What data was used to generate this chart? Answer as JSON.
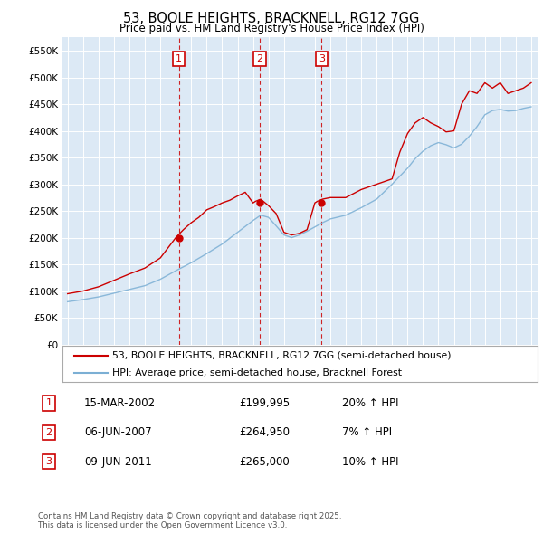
{
  "title": "53, BOOLE HEIGHTS, BRACKNELL, RG12 7GG",
  "subtitle": "Price paid vs. HM Land Registry's House Price Index (HPI)",
  "bg_color": "#ffffff",
  "plot_bg_color": "#dce9f5",
  "ylim": [
    0,
    575000
  ],
  "ytick_vals": [
    0,
    50000,
    100000,
    150000,
    200000,
    250000,
    300000,
    350000,
    400000,
    450000,
    500000,
    550000
  ],
  "ytick_labels": [
    "£0",
    "£50K",
    "£100K",
    "£150K",
    "£200K",
    "£250K",
    "£300K",
    "£350K",
    "£400K",
    "£450K",
    "£500K",
    "£550K"
  ],
  "sale_dates": [
    "2002-03-15",
    "2007-06-06",
    "2011-06-09"
  ],
  "sale_prices": [
    199995,
    264950,
    265000
  ],
  "sale_labels": [
    "1",
    "2",
    "3"
  ],
  "sale_info": [
    {
      "label": "1",
      "date": "15-MAR-2002",
      "price": "£199,995",
      "hpi": "20% ↑ HPI"
    },
    {
      "label": "2",
      "date": "06-JUN-2007",
      "price": "£264,950",
      "hpi": "7% ↑ HPI"
    },
    {
      "label": "3",
      "date": "09-JUN-2011",
      "price": "£265,000",
      "hpi": "10% ↑ HPI"
    }
  ],
  "legend_entry1": "53, BOOLE HEIGHTS, BRACKNELL, RG12 7GG (semi-detached house)",
  "legend_entry2": "HPI: Average price, semi-detached house, Bracknell Forest",
  "footer": "Contains HM Land Registry data © Crown copyright and database right 2025.\nThis data is licensed under the Open Government Licence v3.0.",
  "line_color_red": "#cc0000",
  "line_color_blue": "#7bafd4",
  "vline_color": "#cc0000",
  "box_edge_color": "#cc0000",
  "hpi_years": [
    1995,
    1996,
    1997,
    1998,
    1999,
    2000,
    2001,
    2002,
    2003,
    2004,
    2005,
    2006,
    2007,
    2007.5,
    2008,
    2008.5,
    2009,
    2009.5,
    2010,
    2010.5,
    2011,
    2011.5,
    2012,
    2013,
    2014,
    2015,
    2016,
    2016.5,
    2017,
    2017.5,
    2018,
    2018.5,
    2019,
    2019.5,
    2020,
    2020.5,
    2021,
    2021.5,
    2022,
    2022.5,
    2023,
    2023.5,
    2024,
    2024.5,
    2025
  ],
  "hpi_vals": [
    80000,
    84000,
    89000,
    96000,
    103000,
    110000,
    122000,
    138000,
    153000,
    170000,
    188000,
    210000,
    232000,
    242000,
    238000,
    222000,
    205000,
    200000,
    205000,
    212000,
    220000,
    228000,
    235000,
    242000,
    256000,
    272000,
    300000,
    315000,
    330000,
    348000,
    362000,
    372000,
    378000,
    374000,
    368000,
    375000,
    390000,
    408000,
    430000,
    438000,
    440000,
    437000,
    438000,
    442000,
    445000
  ],
  "red_years": [
    1995,
    1996,
    1997,
    1998,
    1999,
    2000,
    2001,
    2002,
    2002.2,
    2002.5,
    2003,
    2003.5,
    2004,
    2004.5,
    2005,
    2005.5,
    2006,
    2006.5,
    2007,
    2007.2,
    2007.5,
    2008,
    2008.5,
    2009,
    2009.5,
    2010,
    2010.5,
    2011,
    2011.2,
    2011.5,
    2012,
    2013,
    2014,
    2015,
    2016,
    2016.5,
    2017,
    2017.5,
    2018,
    2018.5,
    2019,
    2019.5,
    2020,
    2020.5,
    2021,
    2021.5,
    2022,
    2022.5,
    2023,
    2023.5,
    2024,
    2024.5,
    2025
  ],
  "red_vals": [
    95000,
    100000,
    108000,
    120000,
    132000,
    143000,
    162000,
    200000,
    205000,
    215000,
    228000,
    238000,
    252000,
    258000,
    265000,
    270000,
    278000,
    285000,
    265000,
    268000,
    272000,
    260000,
    245000,
    210000,
    205000,
    208000,
    215000,
    265000,
    268000,
    272000,
    275000,
    275000,
    290000,
    300000,
    310000,
    360000,
    395000,
    415000,
    425000,
    415000,
    408000,
    398000,
    400000,
    450000,
    475000,
    470000,
    490000,
    480000,
    490000,
    470000,
    475000,
    480000,
    490000
  ]
}
